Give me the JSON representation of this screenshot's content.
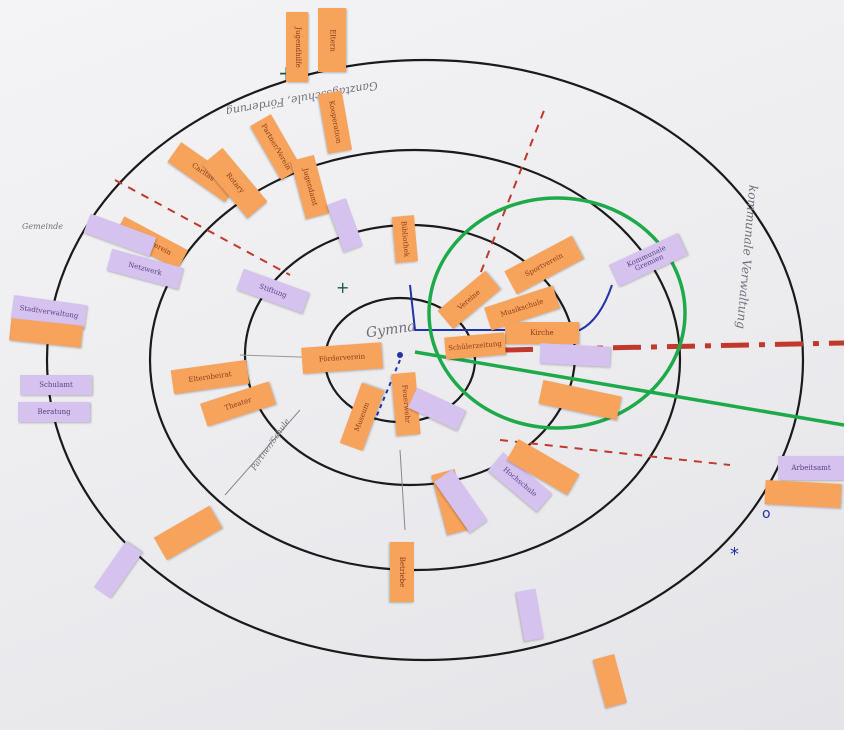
{
  "photo": {
    "caption": "",
    "colors": {
      "paper": "#efeff2",
      "ring_ink": "#1a1a1a",
      "orange_note": "#f7a35c",
      "purple_note": "#d6c2ee",
      "highlight_circle": "#1faa4a",
      "axis_dash": "#c0392b",
      "pen_blue": "#2233aa"
    },
    "center_label": "Gymna",
    "handwriting": {
      "top_label": "Ganztagsschule, Förderung",
      "right_label": "kommunale Verwaltung",
      "left_label": "Gemeinde",
      "ring_label": "Partner/Schule"
    },
    "notes": [
      {
        "color": "orange",
        "text": "Jugendhilfe"
      },
      {
        "color": "orange",
        "text": "Eltern"
      },
      {
        "color": "orange",
        "text": "Caritas"
      },
      {
        "color": "orange",
        "text": "Rotary"
      },
      {
        "color": "orange",
        "text": "Partner/Verein"
      },
      {
        "color": "orange",
        "text": "Jugendamt"
      },
      {
        "color": "orange",
        "text": "Kooperation"
      },
      {
        "color": "orange",
        "text": "Elternverein"
      },
      {
        "color": "orange",
        "text": "Bibliothek"
      },
      {
        "color": "orange",
        "text": "Vereine"
      },
      {
        "color": "orange",
        "text": "Sportverein"
      },
      {
        "color": "orange",
        "text": "Musikschule"
      },
      {
        "color": "orange",
        "text": "Kirche"
      },
      {
        "color": "orange",
        "text": "Schülerzeitung"
      },
      {
        "color": "orange",
        "text": "Förderverein"
      },
      {
        "color": "orange",
        "text": "Elternbeirat"
      },
      {
        "color": "orange",
        "text": "Theater"
      },
      {
        "color": "orange",
        "text": "Museum"
      },
      {
        "color": "orange",
        "text": "Feuerwehr"
      },
      {
        "color": "orange",
        "text": "Betriebe"
      },
      {
        "color": "purple",
        "text": "Kommunale Gremien"
      },
      {
        "color": "purple",
        "text": "Stadtverwaltung"
      },
      {
        "color": "purple",
        "text": "Schulamt"
      },
      {
        "color": "purple",
        "text": "Beratung"
      },
      {
        "color": "purple",
        "text": "Netzwerk"
      },
      {
        "color": "purple",
        "text": "Stiftung"
      },
      {
        "color": "purple",
        "text": "Hochschule"
      },
      {
        "color": "purple",
        "text": "Arbeitsamt"
      }
    ]
  }
}
